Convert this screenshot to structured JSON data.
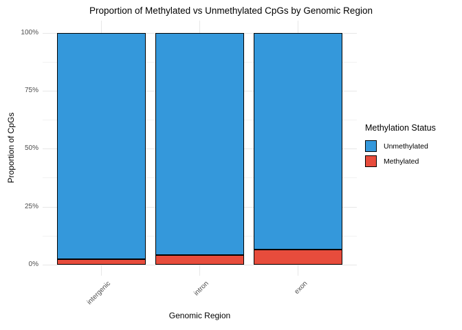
{
  "chart_data": {
    "type": "bar",
    "stacked": true,
    "orientation": "vertical",
    "title": "Proportion of Methylated vs Unmethylated CpGs by Genomic Region",
    "xlabel": "Genomic Region",
    "ylabel": "Proportion of CpGs",
    "categories": [
      "intergenic",
      "intron",
      "exon"
    ],
    "series": [
      {
        "name": "Unmethylated",
        "color": "#3498DB",
        "values": [
          97.6,
          95.9,
          93.5
        ]
      },
      {
        "name": "Methylated",
        "color": "#E74C3C",
        "values": [
          2.4,
          4.1,
          6.5
        ]
      }
    ],
    "stack_order_bottom_to_top": [
      "Methylated",
      "Unmethylated"
    ],
    "units": "percent",
    "ylim": [
      0,
      100
    ],
    "y_ticks": [
      {
        "value": 0,
        "label": "0%"
      },
      {
        "value": 25,
        "label": "25%"
      },
      {
        "value": 50,
        "label": "50%"
      },
      {
        "value": 75,
        "label": "75%"
      },
      {
        "value": 100,
        "label": "100%"
      }
    ],
    "y_minor_ticks": [
      12.5,
      37.5,
      62.5,
      87.5
    ],
    "grid": true,
    "legend": {
      "title": "Methylation Status",
      "position": "right",
      "entries": [
        "Unmethylated",
        "Methylated"
      ]
    },
    "style": {
      "background": "#FFFFFF",
      "grid_major": "#E7E7E7",
      "grid_minor": "#F2F2F2",
      "axis_text_color": "#4D4D4D",
      "text_color": "#000000",
      "bar_outline": "#000000"
    }
  }
}
